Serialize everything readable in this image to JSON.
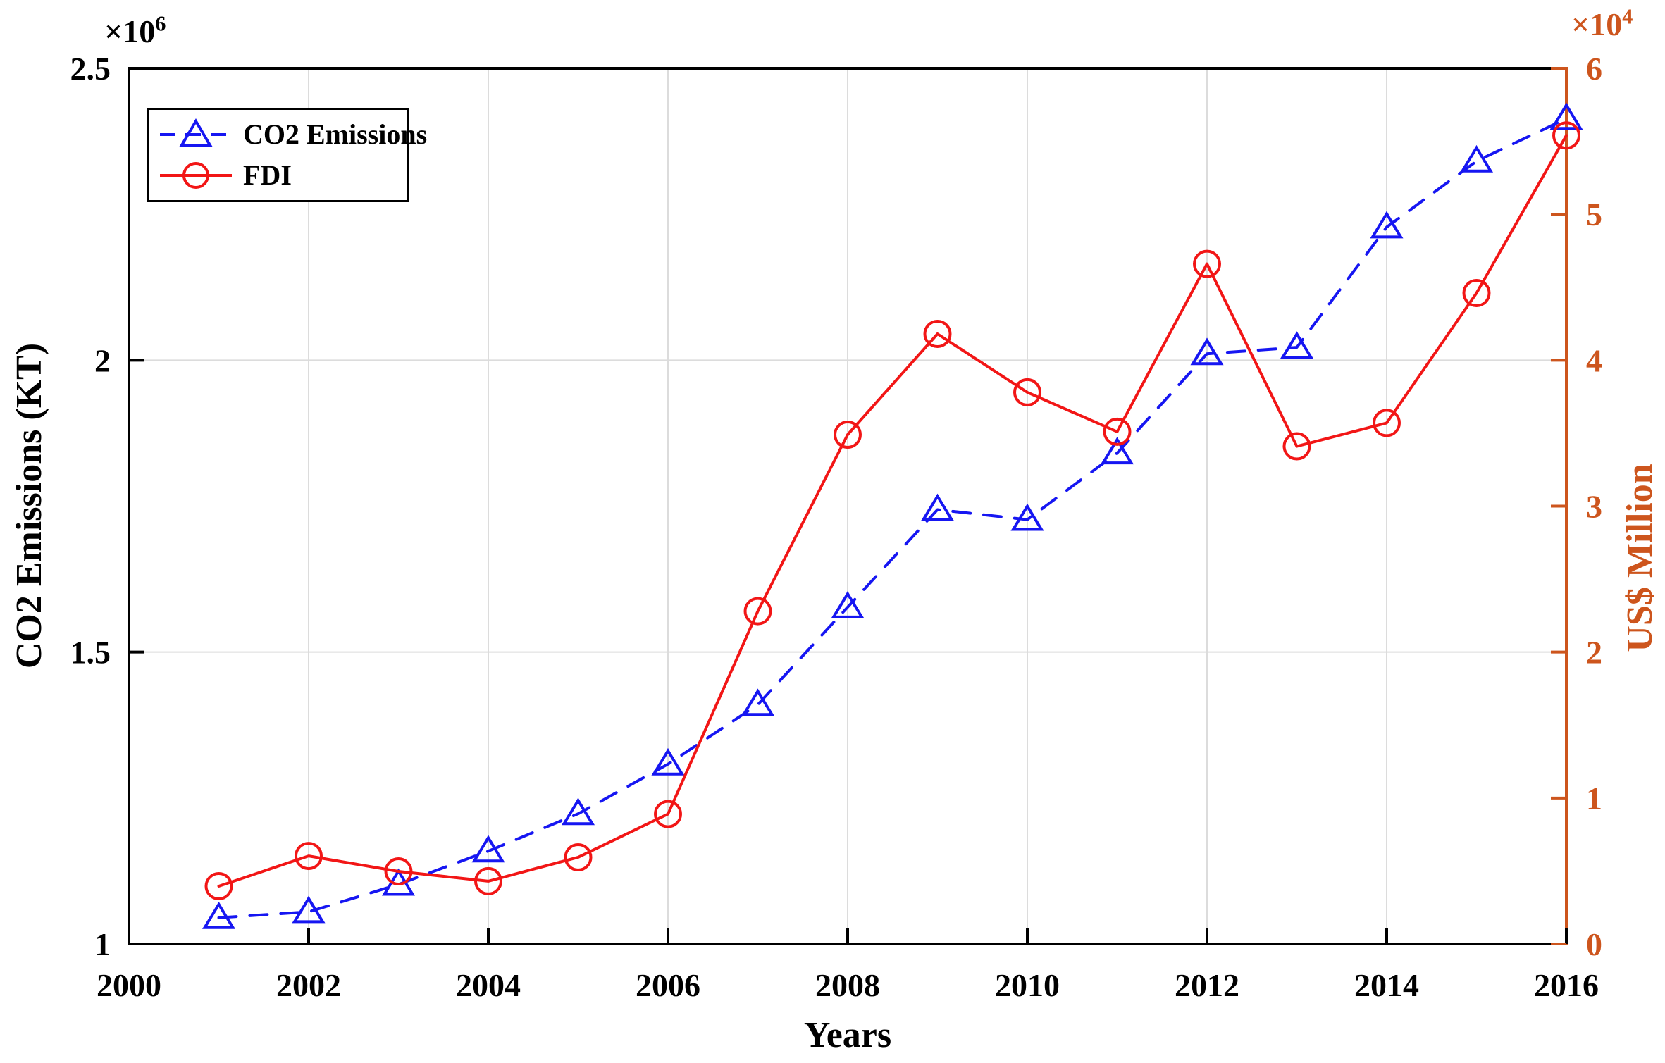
{
  "colors": {
    "co2_series": "#1616f2",
    "fdi_series": "#f21616",
    "right_axis": "#cd551d",
    "grid": "#dcdcdc",
    "axis": "#000000",
    "background": "#ffffff"
  },
  "chart_data": {
    "type": "line",
    "title": "",
    "xlabel": "Years",
    "ylabel_left": "CO2 Emissions (KT)",
    "ylabel_right": "US$ Million",
    "grid": "on",
    "legend_position": "top-left-inside",
    "x": [
      2001,
      2002,
      2003,
      2004,
      2005,
      2006,
      2007,
      2008,
      2009,
      2010,
      2011,
      2012,
      2013,
      2014,
      2015,
      2016
    ],
    "x_axis": {
      "range": [
        2000,
        2016
      ],
      "tick_values": [
        2000,
        2002,
        2004,
        2006,
        2008,
        2010,
        2012,
        2014,
        2016
      ],
      "tick_labels": [
        "2000",
        "2002",
        "2004",
        "2006",
        "2008",
        "2010",
        "2012",
        "2014",
        "2016"
      ],
      "grid_values": [
        2002,
        2004,
        2006,
        2008,
        2010,
        2012,
        2014
      ]
    },
    "left_axis": {
      "range": [
        1000000,
        2500000
      ],
      "tick_values": [
        1000000,
        1500000,
        2000000,
        2500000
      ],
      "tick_labels": [
        "1",
        "1.5",
        "2",
        "2.5"
      ],
      "grid_values": [
        1500000,
        2000000
      ],
      "multiplier_base": "×10",
      "multiplier_exp": "6"
    },
    "right_axis": {
      "range": [
        0,
        60000
      ],
      "tick_values": [
        0,
        10000,
        20000,
        30000,
        40000,
        50000,
        60000
      ],
      "tick_labels": [
        "0",
        "1",
        "2",
        "3",
        "4",
        "5",
        "6"
      ],
      "grid_values": [],
      "multiplier_base": "×10",
      "multiplier_exp": "4"
    },
    "series": [
      {
        "name": "CO2 Emissions",
        "axis": "left",
        "color": "#1616f2",
        "line_style": "dashed",
        "marker": "triangle",
        "values": [
          1045000,
          1055000,
          1102000,
          1159000,
          1223000,
          1308000,
          1410000,
          1577000,
          1744000,
          1727000,
          1841000,
          2011000,
          2022000,
          2228000,
          2341000,
          2414000
        ]
      },
      {
        "name": "FDI",
        "axis": "right",
        "color": "#f21616",
        "line_style": "solid",
        "marker": "circle",
        "values": [
          3960,
          6030,
          4970,
          4300,
          5940,
          8900,
          22800,
          34900,
          41800,
          37800,
          35100,
          46600,
          34100,
          35700,
          44600,
          55400
        ]
      }
    ]
  }
}
